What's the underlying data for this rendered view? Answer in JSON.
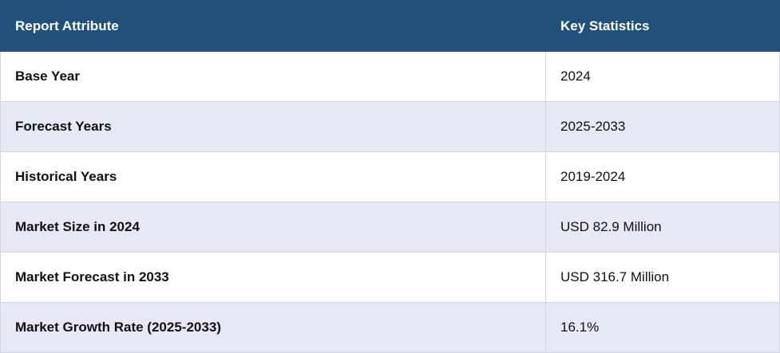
{
  "table": {
    "header": [
      "Report Attribute",
      "Key Statistics"
    ],
    "rows": [
      [
        "Base Year",
        "2024"
      ],
      [
        "Forecast Years",
        "2025-2033"
      ],
      [
        "Historical Years",
        "2019-2024"
      ],
      [
        "Market Size in 2024",
        "USD 82.9 Million"
      ],
      [
        "Market Forecast in 2033",
        "USD 316.7 Million"
      ],
      [
        "Market Growth Rate (2025-2033)",
        "16.1%"
      ]
    ]
  }
}
